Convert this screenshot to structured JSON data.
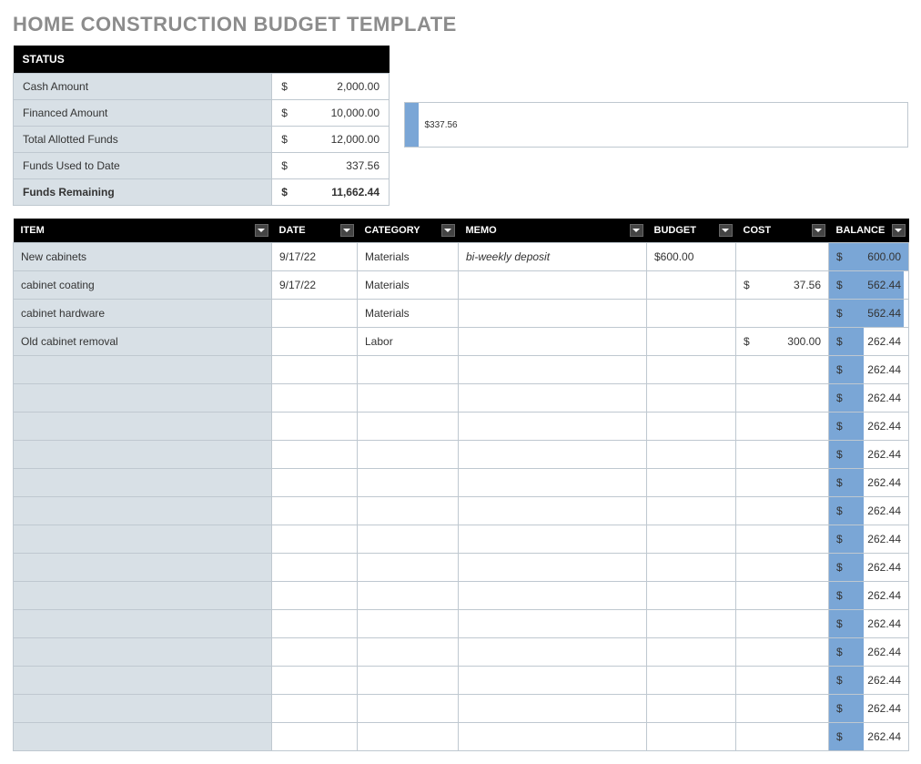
{
  "title": "HOME CONSTRUCTION BUDGET TEMPLATE",
  "status": {
    "header": "STATUS",
    "rows": [
      {
        "label": "Cash Amount",
        "dollar": "$",
        "value": "2,000.00",
        "bold": false
      },
      {
        "label": "Financed Amount",
        "dollar": "$",
        "value": "10,000.00",
        "bold": false
      },
      {
        "label": "Total Allotted Funds",
        "dollar": "$",
        "value": "12,000.00",
        "bold": false
      },
      {
        "label": "Funds Used to Date",
        "dollar": "$",
        "value": "337.56",
        "bold": false
      },
      {
        "label": "Funds Remaining",
        "dollar": "$",
        "value": "11,662.44",
        "bold": true
      }
    ]
  },
  "chart": {
    "label": "$337.56",
    "bar_color": "#7aa6d6",
    "bar_pct": 2.8
  },
  "main": {
    "headers": {
      "item": "ITEM",
      "date": "DATE",
      "category": "CATEGORY",
      "memo": "MEMO",
      "budget": "BUDGET",
      "cost": "COST",
      "balance": "BALANCE"
    },
    "rows": [
      {
        "item": "New cabinets",
        "date": "9/17/22",
        "category": "Materials",
        "memo": "bi-weekly deposit",
        "budget": "$600.00",
        "cost_d": "",
        "cost_v": "",
        "bal_d": "$",
        "bal_v": "600.00",
        "bal_pct": 100
      },
      {
        "item": "cabinet coating",
        "date": "9/17/22",
        "category": "Materials",
        "memo": "",
        "budget": "",
        "cost_d": "$",
        "cost_v": "37.56",
        "bal_d": "$",
        "bal_v": "562.44",
        "bal_pct": 94
      },
      {
        "item": "cabinet hardware",
        "date": "",
        "category": "Materials",
        "memo": "",
        "budget": "",
        "cost_d": "",
        "cost_v": "",
        "bal_d": "$",
        "bal_v": "562.44",
        "bal_pct": 94
      },
      {
        "item": "Old cabinet removal",
        "date": "",
        "category": "Labor",
        "memo": "",
        "budget": "",
        "cost_d": "$",
        "cost_v": "300.00",
        "bal_d": "$",
        "bal_v": "262.44",
        "bal_pct": 44
      },
      {
        "item": "",
        "date": "",
        "category": "",
        "memo": "",
        "budget": "",
        "cost_d": "",
        "cost_v": "",
        "bal_d": "$",
        "bal_v": "262.44",
        "bal_pct": 44
      },
      {
        "item": "",
        "date": "",
        "category": "",
        "memo": "",
        "budget": "",
        "cost_d": "",
        "cost_v": "",
        "bal_d": "$",
        "bal_v": "262.44",
        "bal_pct": 44
      },
      {
        "item": "",
        "date": "",
        "category": "",
        "memo": "",
        "budget": "",
        "cost_d": "",
        "cost_v": "",
        "bal_d": "$",
        "bal_v": "262.44",
        "bal_pct": 44
      },
      {
        "item": "",
        "date": "",
        "category": "",
        "memo": "",
        "budget": "",
        "cost_d": "",
        "cost_v": "",
        "bal_d": "$",
        "bal_v": "262.44",
        "bal_pct": 44
      },
      {
        "item": "",
        "date": "",
        "category": "",
        "memo": "",
        "budget": "",
        "cost_d": "",
        "cost_v": "",
        "bal_d": "$",
        "bal_v": "262.44",
        "bal_pct": 44
      },
      {
        "item": "",
        "date": "",
        "category": "",
        "memo": "",
        "budget": "",
        "cost_d": "",
        "cost_v": "",
        "bal_d": "$",
        "bal_v": "262.44",
        "bal_pct": 44
      },
      {
        "item": "",
        "date": "",
        "category": "",
        "memo": "",
        "budget": "",
        "cost_d": "",
        "cost_v": "",
        "bal_d": "$",
        "bal_v": "262.44",
        "bal_pct": 44
      },
      {
        "item": "",
        "date": "",
        "category": "",
        "memo": "",
        "budget": "",
        "cost_d": "",
        "cost_v": "",
        "bal_d": "$",
        "bal_v": "262.44",
        "bal_pct": 44
      },
      {
        "item": "",
        "date": "",
        "category": "",
        "memo": "",
        "budget": "",
        "cost_d": "",
        "cost_v": "",
        "bal_d": "$",
        "bal_v": "262.44",
        "bal_pct": 44
      },
      {
        "item": "",
        "date": "",
        "category": "",
        "memo": "",
        "budget": "",
        "cost_d": "",
        "cost_v": "",
        "bal_d": "$",
        "bal_v": "262.44",
        "bal_pct": 44
      },
      {
        "item": "",
        "date": "",
        "category": "",
        "memo": "",
        "budget": "",
        "cost_d": "",
        "cost_v": "",
        "bal_d": "$",
        "bal_v": "262.44",
        "bal_pct": 44
      },
      {
        "item": "",
        "date": "",
        "category": "",
        "memo": "",
        "budget": "",
        "cost_d": "",
        "cost_v": "",
        "bal_d": "$",
        "bal_v": "262.44",
        "bal_pct": 44
      },
      {
        "item": "",
        "date": "",
        "category": "",
        "memo": "",
        "budget": "",
        "cost_d": "",
        "cost_v": "",
        "bal_d": "$",
        "bal_v": "262.44",
        "bal_pct": 44
      },
      {
        "item": "",
        "date": "",
        "category": "",
        "memo": "",
        "budget": "",
        "cost_d": "",
        "cost_v": "",
        "bal_d": "$",
        "bal_v": "262.44",
        "bal_pct": 44
      }
    ]
  },
  "colors": {
    "header_bg": "#000000",
    "header_fg": "#ffffff",
    "shade_bg": "#d8e0e6",
    "border": "#bfc8d0",
    "bar": "#7aa6d6"
  }
}
